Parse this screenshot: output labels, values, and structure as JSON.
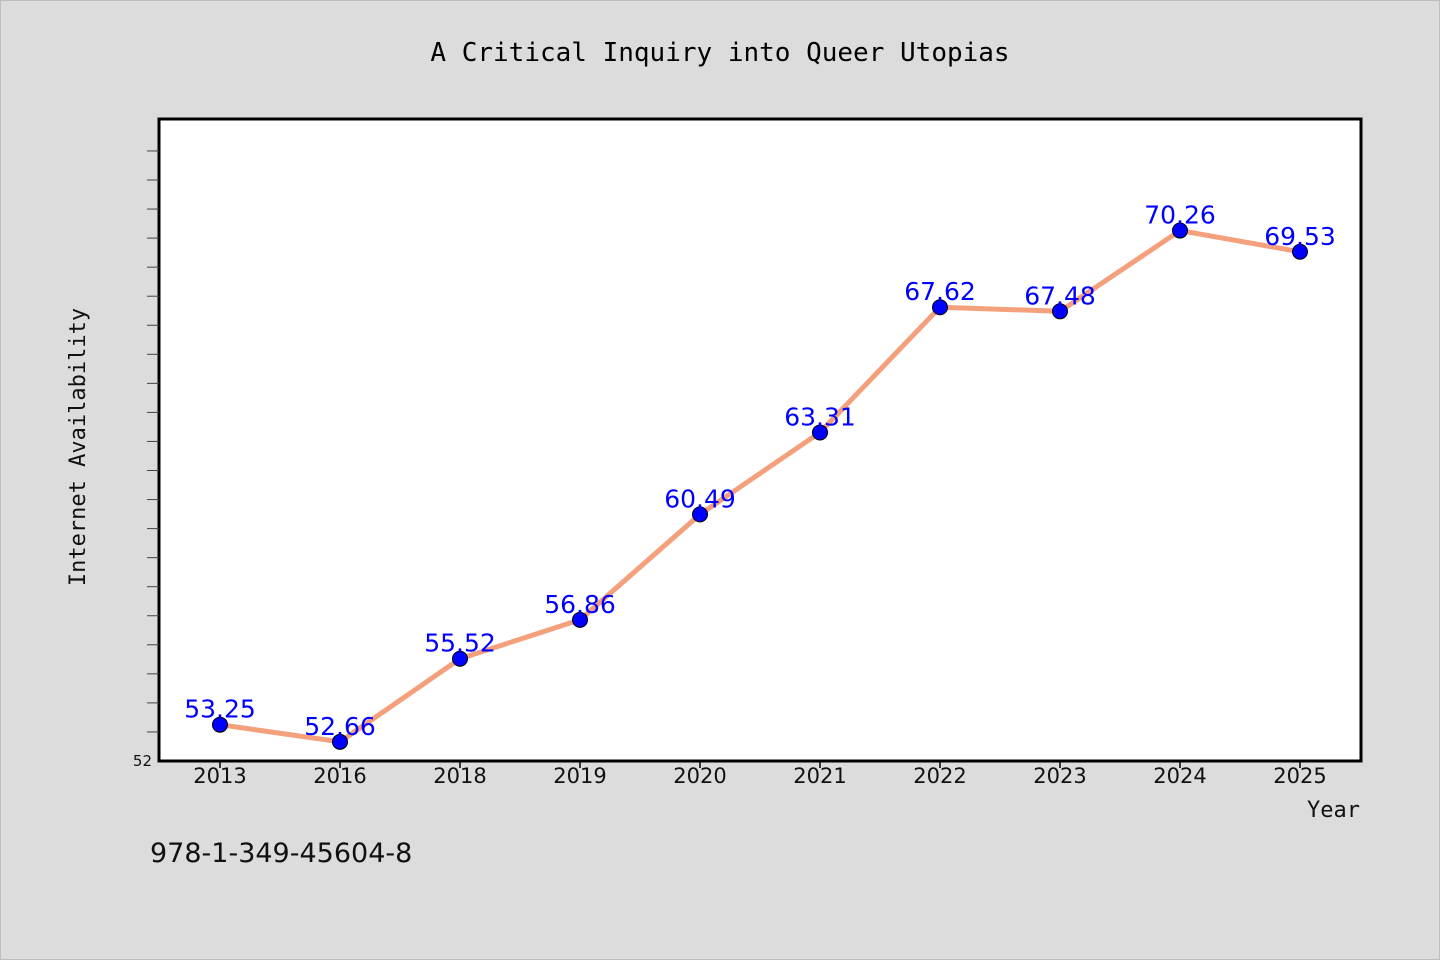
{
  "chart_data": {
    "type": "line",
    "title": "A Critical Inquiry into Queer Utopias",
    "xlabel": "Year",
    "ylabel": "Internet Availability",
    "categories": [
      "2013",
      "2016",
      "2018",
      "2019",
      "2020",
      "2021",
      "2022",
      "2023",
      "2024",
      "2025"
    ],
    "series": [
      {
        "values": [
          53.25,
          52.66,
          55.52,
          56.86,
          60.49,
          63.31,
          67.62,
          67.48,
          70.26,
          69.53
        ],
        "data_labels": [
          "53.25",
          "52.66",
          "55.52",
          "56.86",
          "60.49",
          "63.31",
          "67.62",
          "67.48",
          "70.26",
          "69.53"
        ],
        "line_color": "#f4a07c",
        "marker_color": "#0000ff"
      }
    ],
    "ylim": [
      52,
      74.1
    ],
    "y_tick_labels": [
      "52"
    ],
    "grid": false,
    "legend": "none",
    "background_color": "#dcdcdc",
    "plot_background_color": "#ffffff",
    "data_label_color": "#0000ff"
  },
  "footer": {
    "isbn": "978-1-349-45604-8"
  }
}
